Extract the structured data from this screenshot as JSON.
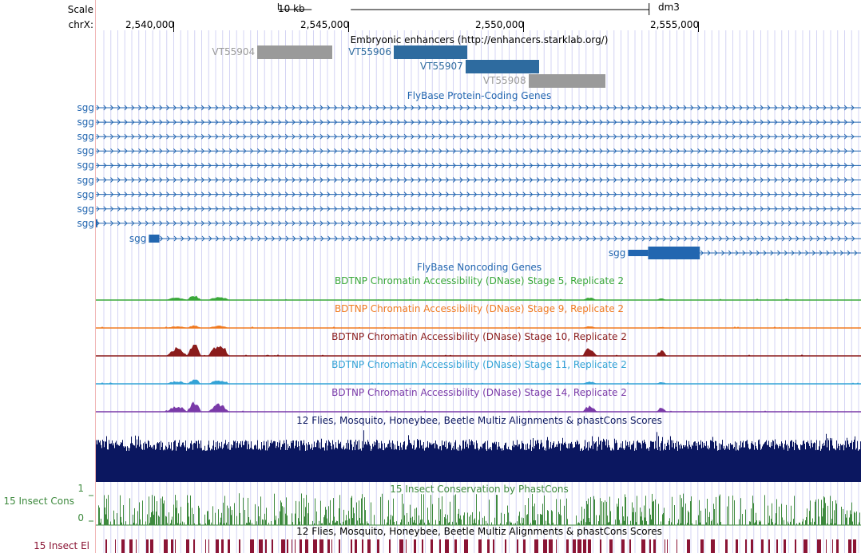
{
  "ruler": {
    "scale_label": "Scale",
    "chrom_label": "chrX:",
    "scale_bar_text": "10 kb",
    "assembly": "dm3",
    "ticks": [
      {
        "text": "2,540,000",
        "pos": 2540000
      },
      {
        "text": "2,545,000",
        "pos": 2545000
      },
      {
        "text": "2,550,000",
        "pos": 2550000
      },
      {
        "text": "2,555,000",
        "pos": 2555000
      }
    ]
  },
  "tracks": {
    "enhancers": {
      "title": "Embryonic enhancers (http://enhancers.starklab.org/)",
      "items": [
        {
          "name": "VT55904",
          "color": "#9a9a9a",
          "start": 2542400,
          "end": 2544550
        },
        {
          "name": "VT55907",
          "color": "#2e6b9f",
          "start": 2548350,
          "end": 2550450
        },
        {
          "name": "VT55906",
          "color": "#2e6b9f",
          "start": 2546300,
          "end": 2548400
        },
        {
          "name": "VT55908",
          "color": "#9a9a9a",
          "start": 2550150,
          "end": 2552350
        }
      ]
    },
    "protein_coding": {
      "title": "FlyBase Protein-Coding Genes",
      "color": "#2266b0",
      "full_rows": [
        "sgg",
        "sgg",
        "sgg",
        "sgg",
        "sgg",
        "sgg",
        "sgg",
        "sgg",
        "sgg"
      ],
      "partial_rows": [
        {
          "name": "sgg",
          "exon_start": 2539300,
          "exon_end": 2539600
        },
        {
          "name": "sgg",
          "exon_start": 2553000,
          "exon_end": 2555050
        }
      ]
    },
    "noncoding": {
      "title": "FlyBase Noncoding Genes"
    },
    "dnase": [
      {
        "title": "BDTNP Chromatin Accessibility (DNase) Stage 5, Replicate 2",
        "color": "#3aa83a"
      },
      {
        "title": "BDTNP Chromatin Accessibility (DNase) Stage 9, Replicate 2",
        "color": "#f07b21"
      },
      {
        "title": "BDTNP Chromatin Accessibility (DNase) Stage 10, Replicate 2",
        "color": "#8b1c1c"
      },
      {
        "title": "BDTNP Chromatin Accessibility (DNase) Stage 11, Replicate 2",
        "color": "#33a3d6"
      },
      {
        "title": "BDTNP Chromatin Accessibility (DNase) Stage 14, Replicate 2",
        "color": "#7a3aa8"
      }
    ],
    "multiz": {
      "title": "12 Flies, Mosquito, Honeybee, Beetle Multiz Alignments & phastCons Scores",
      "color": "#0b1760"
    },
    "phastcons": {
      "title": "15 Insect Conservation by PhastCons",
      "side_label": "15 Insect Cons",
      "axis_max": "1",
      "axis_min": "0",
      "color": "#3e8a3e"
    },
    "elements": {
      "title": "12 Flies, Mosquito, Honeybee, Beetle Multiz Alignments & phastCons Scores",
      "side_label": "15 Insect El",
      "color": "#8b1535"
    }
  },
  "colors": {
    "grid": "#d4d4f4",
    "left_border": "#f0b4b4"
  }
}
